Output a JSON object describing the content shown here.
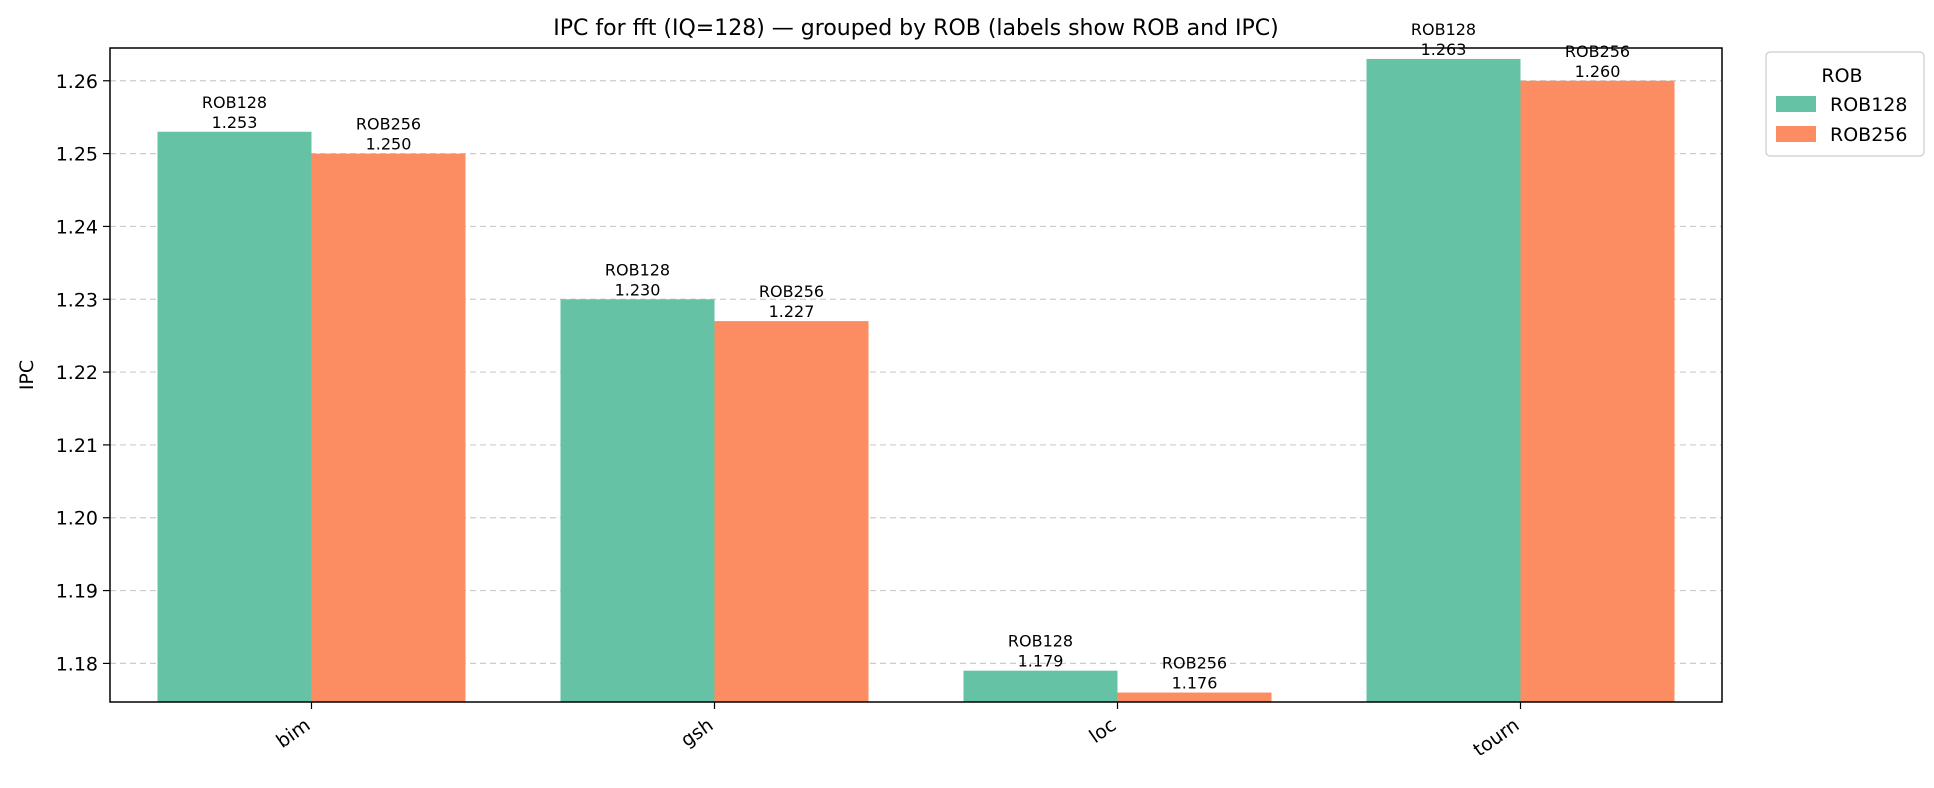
{
  "chart_data": {
    "type": "bar",
    "title": "IPC for fft (IQ=128) — grouped by ROB (labels show ROB and IPC)",
    "xlabel": "",
    "ylabel": "IPC",
    "categories": [
      "bim",
      "gsh",
      "loc",
      "tourn"
    ],
    "series": [
      {
        "name": "ROB128",
        "values": [
          1.253,
          1.23,
          1.179,
          1.263
        ],
        "labels": [
          "ROB128\n1.253",
          "ROB128\n1.230",
          "ROB128\n1.179",
          "ROB128\n1.263"
        ]
      },
      {
        "name": "ROB256",
        "values": [
          1.25,
          1.227,
          1.176,
          1.26
        ],
        "labels": [
          "ROB256\n1.250",
          "ROB256\n1.227",
          "ROB256\n1.176",
          "ROB256\n1.260"
        ]
      }
    ],
    "ylim": [
      1.1747,
      1.2645
    ],
    "yticks": [
      "1.18",
      "1.19",
      "1.20",
      "1.21",
      "1.22",
      "1.23",
      "1.24",
      "1.25",
      "1.26"
    ],
    "grid": "y-dashed",
    "legend": {
      "title": "ROB",
      "position": "outside-top-right",
      "entries": [
        "ROB128",
        "ROB256"
      ]
    },
    "colors": [
      "#66c2a5",
      "#fc8d62"
    ]
  }
}
